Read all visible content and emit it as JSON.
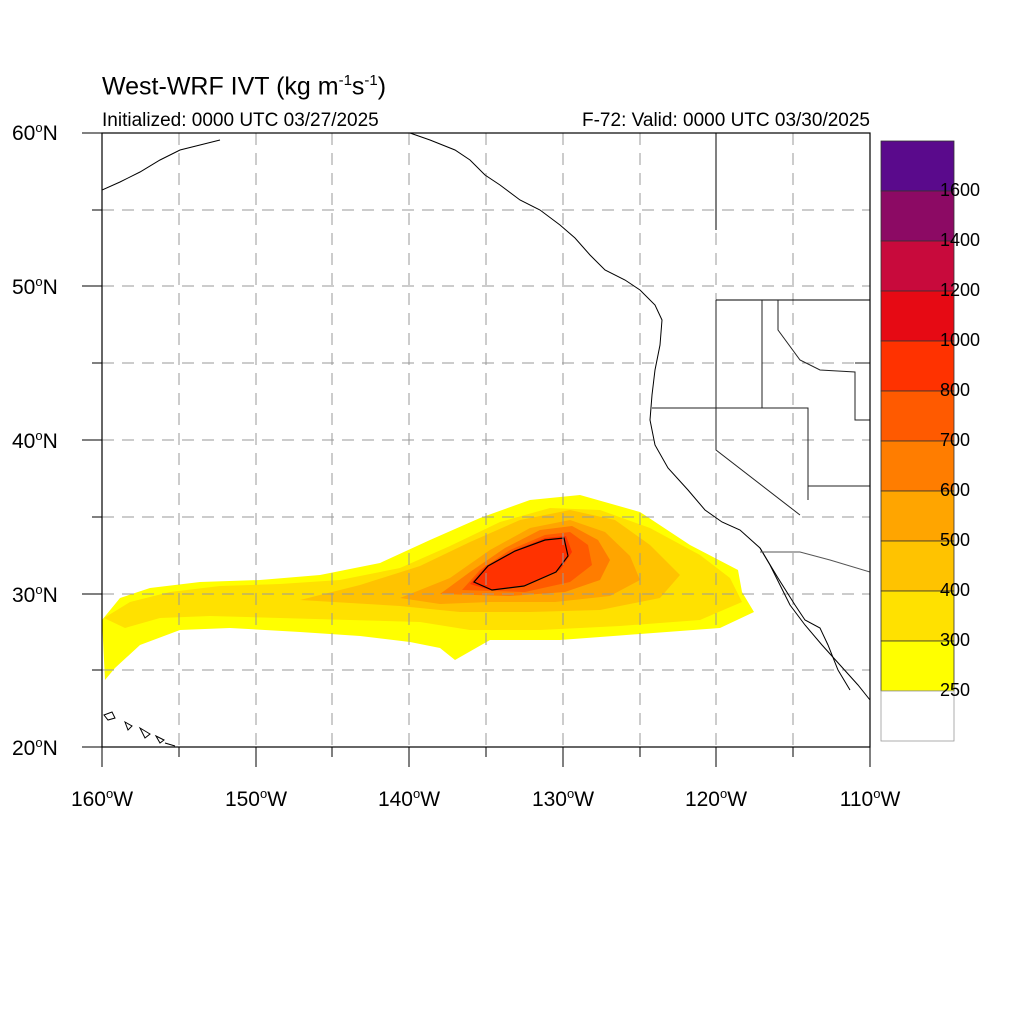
{
  "title_main": "West-WRF IVT (kg m",
  "title_exp1": "-1",
  "title_mid": "s",
  "title_exp2": "-1",
  "title_end": ")",
  "subtitle_left": "Initialized: 0000 UTC 03/27/2025",
  "subtitle_right": "F-72: Valid: 0000 UTC 03/30/2025",
  "axes": {
    "lat_labels": [
      {
        "num": "60",
        "hem": "N"
      },
      {
        "num": "50",
        "hem": "N"
      },
      {
        "num": "40",
        "hem": "N"
      },
      {
        "num": "30",
        "hem": "N"
      },
      {
        "num": "20",
        "hem": "N"
      }
    ],
    "lon_labels": [
      {
        "num": "160",
        "hem": "W"
      },
      {
        "num": "150",
        "hem": "W"
      },
      {
        "num": "140",
        "hem": "W"
      },
      {
        "num": "130",
        "hem": "W"
      },
      {
        "num": "120",
        "hem": "W"
      },
      {
        "num": "110",
        "hem": "W"
      }
    ],
    "deg_symbol": "o",
    "lat_range": [
      20,
      60
    ],
    "lon_range": [
      -160,
      -110
    ],
    "gridlines": "dashed every 5 degrees"
  },
  "colorbar": {
    "labels": [
      "1600",
      "1400",
      "1200",
      "1000",
      "800",
      "700",
      "600",
      "500",
      "400",
      "300",
      "250"
    ],
    "colors": [
      "#5a0a8c",
      "#8c0a64",
      "#c80a3c",
      "#e60a14",
      "#ff3200",
      "#ff5a00",
      "#ff7d00",
      "#ffa500",
      "#ffc300",
      "#ffe100",
      "#ffff00",
      "#ffffff"
    ]
  }
}
